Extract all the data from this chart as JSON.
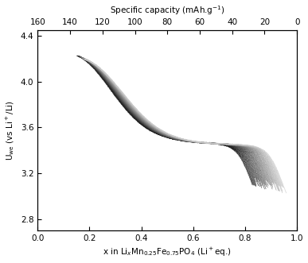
{
  "title_top": "Specific capacity (mAh.g$^{-1}$)",
  "xlabel": "x in Li$_x$Mn$_{0.25}$Fe$_{0.75}$PO$_4$ (Li$^+$eq.)",
  "ylabel": "U$_{we}$ (vs Li$^+$/Li)",
  "xlim": [
    0.0,
    1.0
  ],
  "ylim": [
    2.7,
    4.45
  ],
  "xticks_bottom": [
    0.0,
    0.2,
    0.4,
    0.6,
    0.8,
    1.0
  ],
  "xticks_top_vals": [
    160,
    140,
    120,
    100,
    80,
    60,
    40,
    20,
    0
  ],
  "yticks": [
    2.8,
    3.2,
    3.6,
    4.0,
    4.4
  ],
  "n_cycles": 50,
  "line_width": 0.55,
  "max_capacity_mAh": 160
}
